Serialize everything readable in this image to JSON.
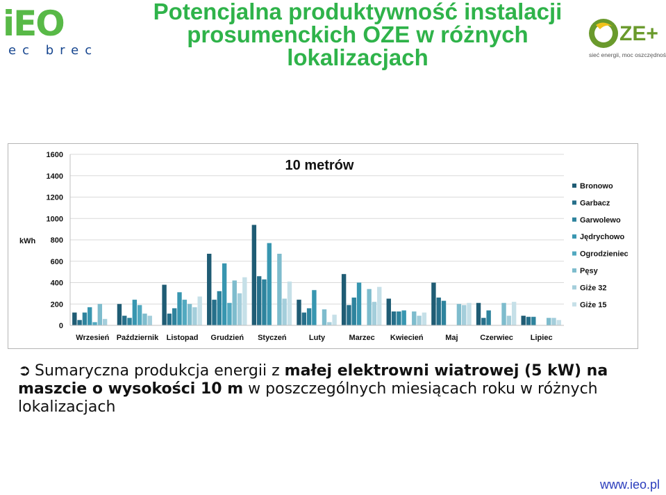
{
  "header": {
    "title_lines": [
      "Potencjalna produktywność instalacji",
      "prosumenckich OZE w różnych",
      "lokalizacjach"
    ],
    "left_logo": {
      "word": "iEO",
      "subtitle": "ec brec"
    },
    "right_logo": {
      "word": "ZE+",
      "tagline": "sieć energii, moc oszczędności"
    }
  },
  "caption": {
    "part1": "Sumaryczna produkcja energii z ",
    "bold1": "małej elektrowni wiatrowej (5 kW) na maszcie o wysokości 10 m",
    "part2": " w poszczególnych miesiącach roku w różnych lokalizacjach"
  },
  "footer": {
    "url": "www.ieo.pl"
  },
  "chart_data": {
    "type": "bar",
    "title": "10 metrów",
    "ylabel": "kWh",
    "ylim": [
      0,
      1600
    ],
    "yticks": [
      0,
      200,
      400,
      600,
      800,
      1000,
      1200,
      1400,
      1600
    ],
    "legend_position": "right",
    "categories": [
      "Wrzesień",
      "Październik",
      "Listopad",
      "Grudzień",
      "Styczeń",
      "Luty",
      "Marzec",
      "Kwiecień",
      "Maj",
      "Czerwiec",
      "Lipiec"
    ],
    "series": [
      {
        "name": "Bronowo",
        "color": "#1f5c74",
        "values": [
          120,
          200,
          380,
          670,
          940,
          240,
          480,
          250,
          400,
          210,
          90
        ]
      },
      {
        "name": "Garbacz",
        "color": "#266f8a",
        "values": [
          50,
          90,
          110,
          240,
          460,
          120,
          190,
          130,
          260,
          70,
          80
        ]
      },
      {
        "name": "Garwolewo",
        "color": "#2e839d",
        "values": [
          120,
          70,
          160,
          320,
          430,
          160,
          260,
          130,
          230,
          140,
          80
        ]
      },
      {
        "name": "Jędrychowo",
        "color": "#3896b0",
        "values": [
          170,
          240,
          310,
          580,
          770,
          330,
          400,
          140,
          0,
          0,
          0
        ]
      },
      {
        "name": "Ogrodzieniec",
        "color": "#52a9c0",
        "values": [
          30,
          190,
          240,
          210,
          0,
          0,
          0,
          0,
          0,
          0,
          0
        ]
      },
      {
        "name": "Pęsy",
        "color": "#7ebccd",
        "values": [
          200,
          110,
          200,
          420,
          670,
          150,
          340,
          130,
          200,
          210,
          70
        ]
      },
      {
        "name": "Giże 32",
        "color": "#a4cedb",
        "values": [
          60,
          90,
          170,
          300,
          250,
          30,
          220,
          90,
          190,
          90,
          70
        ]
      },
      {
        "name": "Giże 15",
        "color": "#c6e0e8",
        "values": [
          0,
          0,
          270,
          450,
          410,
          100,
          360,
          120,
          210,
          220,
          50
        ]
      }
    ]
  }
}
